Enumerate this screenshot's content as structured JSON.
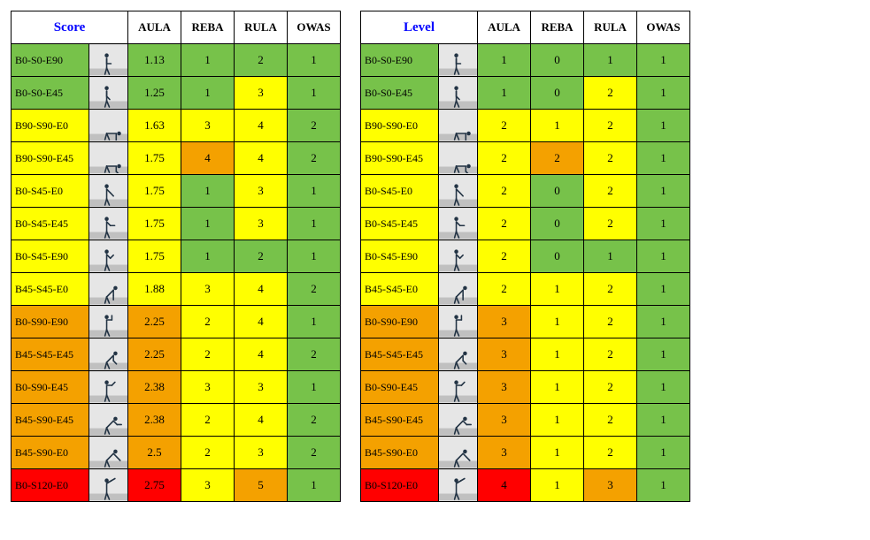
{
  "colors": {
    "green": "#77c24a",
    "yellow": "#ffff00",
    "orange": "#f4a100",
    "red": "#ff0000",
    "header_bg": "#ffffff",
    "header_fg": "#0000ff",
    "border": "#000000",
    "photo_bg": "#d9d9d9",
    "photo_floor": "#c0c0c0",
    "photo_wall": "#e6e6e6",
    "figure": "#223344"
  },
  "tables": [
    {
      "title": "Score",
      "columns": [
        "AULA",
        "REBA",
        "RULA",
        "OWAS"
      ],
      "rows": [
        {
          "label": "B0-S0-E90",
          "label_color": "green",
          "cells": [
            {
              "v": "1.13",
              "c": "green"
            },
            {
              "v": "1",
              "c": "green"
            },
            {
              "v": "2",
              "c": "green"
            },
            {
              "v": "1",
              "c": "green"
            }
          ]
        },
        {
          "label": "B0-S0-E45",
          "label_color": "green",
          "cells": [
            {
              "v": "1.25",
              "c": "green"
            },
            {
              "v": "1",
              "c": "green"
            },
            {
              "v": "3",
              "c": "yellow"
            },
            {
              "v": "1",
              "c": "green"
            }
          ]
        },
        {
          "label": "B90-S90-E0",
          "label_color": "yellow",
          "cells": [
            {
              "v": "1.63",
              "c": "yellow"
            },
            {
              "v": "3",
              "c": "yellow"
            },
            {
              "v": "4",
              "c": "yellow"
            },
            {
              "v": "2",
              "c": "green"
            }
          ]
        },
        {
          "label": "B90-S90-E45",
          "label_color": "yellow",
          "cells": [
            {
              "v": "1.75",
              "c": "yellow"
            },
            {
              "v": "4",
              "c": "orange"
            },
            {
              "v": "4",
              "c": "yellow"
            },
            {
              "v": "2",
              "c": "green"
            }
          ]
        },
        {
          "label": "B0-S45-E0",
          "label_color": "yellow",
          "cells": [
            {
              "v": "1.75",
              "c": "yellow"
            },
            {
              "v": "1",
              "c": "green"
            },
            {
              "v": "3",
              "c": "yellow"
            },
            {
              "v": "1",
              "c": "green"
            }
          ]
        },
        {
          "label": "B0-S45-E45",
          "label_color": "yellow",
          "cells": [
            {
              "v": "1.75",
              "c": "yellow"
            },
            {
              "v": "1",
              "c": "green"
            },
            {
              "v": "3",
              "c": "yellow"
            },
            {
              "v": "1",
              "c": "green"
            }
          ]
        },
        {
          "label": "B0-S45-E90",
          "label_color": "yellow",
          "cells": [
            {
              "v": "1.75",
              "c": "yellow"
            },
            {
              "v": "1",
              "c": "green"
            },
            {
              "v": "2",
              "c": "green"
            },
            {
              "v": "1",
              "c": "green"
            }
          ]
        },
        {
          "label": "B45-S45-E0",
          "label_color": "yellow",
          "cells": [
            {
              "v": "1.88",
              "c": "yellow"
            },
            {
              "v": "3",
              "c": "yellow"
            },
            {
              "v": "4",
              "c": "yellow"
            },
            {
              "v": "2",
              "c": "green"
            }
          ]
        },
        {
          "label": "B0-S90-E90",
          "label_color": "orange",
          "cells": [
            {
              "v": "2.25",
              "c": "orange"
            },
            {
              "v": "2",
              "c": "yellow"
            },
            {
              "v": "4",
              "c": "yellow"
            },
            {
              "v": "1",
              "c": "green"
            }
          ]
        },
        {
          "label": "B45-S45-E45",
          "label_color": "orange",
          "cells": [
            {
              "v": "2.25",
              "c": "orange"
            },
            {
              "v": "2",
              "c": "yellow"
            },
            {
              "v": "4",
              "c": "yellow"
            },
            {
              "v": "2",
              "c": "green"
            }
          ]
        },
        {
          "label": "B0-S90-E45",
          "label_color": "orange",
          "cells": [
            {
              "v": "2.38",
              "c": "orange"
            },
            {
              "v": "3",
              "c": "yellow"
            },
            {
              "v": "3",
              "c": "yellow"
            },
            {
              "v": "1",
              "c": "green"
            }
          ]
        },
        {
          "label": "B45-S90-E45",
          "label_color": "orange",
          "cells": [
            {
              "v": "2.38",
              "c": "orange"
            },
            {
              "v": "2",
              "c": "yellow"
            },
            {
              "v": "4",
              "c": "yellow"
            },
            {
              "v": "2",
              "c": "green"
            }
          ]
        },
        {
          "label": "B45-S90-E0",
          "label_color": "orange",
          "cells": [
            {
              "v": "2.5",
              "c": "orange"
            },
            {
              "v": "2",
              "c": "yellow"
            },
            {
              "v": "3",
              "c": "yellow"
            },
            {
              "v": "2",
              "c": "green"
            }
          ]
        },
        {
          "label": "B0-S120-E0",
          "label_color": "red",
          "cells": [
            {
              "v": "2.75",
              "c": "red"
            },
            {
              "v": "3",
              "c": "yellow"
            },
            {
              "v": "5",
              "c": "orange"
            },
            {
              "v": "1",
              "c": "green"
            }
          ]
        }
      ]
    },
    {
      "title": "Level",
      "columns": [
        "AULA",
        "REBA",
        "RULA",
        "OWAS"
      ],
      "rows": [
        {
          "label": "B0-S0-E90",
          "label_color": "green",
          "cells": [
            {
              "v": "1",
              "c": "green"
            },
            {
              "v": "0",
              "c": "green"
            },
            {
              "v": "1",
              "c": "green"
            },
            {
              "v": "1",
              "c": "green"
            }
          ]
        },
        {
          "label": "B0-S0-E45",
          "label_color": "green",
          "cells": [
            {
              "v": "1",
              "c": "green"
            },
            {
              "v": "0",
              "c": "green"
            },
            {
              "v": "2",
              "c": "yellow"
            },
            {
              "v": "1",
              "c": "green"
            }
          ]
        },
        {
          "label": "B90-S90-E0",
          "label_color": "yellow",
          "cells": [
            {
              "v": "2",
              "c": "yellow"
            },
            {
              "v": "1",
              "c": "yellow"
            },
            {
              "v": "2",
              "c": "yellow"
            },
            {
              "v": "1",
              "c": "green"
            }
          ]
        },
        {
          "label": "B90-S90-E45",
          "label_color": "yellow",
          "cells": [
            {
              "v": "2",
              "c": "yellow"
            },
            {
              "v": "2",
              "c": "orange"
            },
            {
              "v": "2",
              "c": "yellow"
            },
            {
              "v": "1",
              "c": "green"
            }
          ]
        },
        {
          "label": "B0-S45-E0",
          "label_color": "yellow",
          "cells": [
            {
              "v": "2",
              "c": "yellow"
            },
            {
              "v": "0",
              "c": "green"
            },
            {
              "v": "2",
              "c": "yellow"
            },
            {
              "v": "1",
              "c": "green"
            }
          ]
        },
        {
          "label": "B0-S45-E45",
          "label_color": "yellow",
          "cells": [
            {
              "v": "2",
              "c": "yellow"
            },
            {
              "v": "0",
              "c": "green"
            },
            {
              "v": "2",
              "c": "yellow"
            },
            {
              "v": "1",
              "c": "green"
            }
          ]
        },
        {
          "label": "B0-S45-E90",
          "label_color": "yellow",
          "cells": [
            {
              "v": "2",
              "c": "yellow"
            },
            {
              "v": "0",
              "c": "green"
            },
            {
              "v": "1",
              "c": "green"
            },
            {
              "v": "1",
              "c": "green"
            }
          ]
        },
        {
          "label": "B45-S45-E0",
          "label_color": "yellow",
          "cells": [
            {
              "v": "2",
              "c": "yellow"
            },
            {
              "v": "1",
              "c": "yellow"
            },
            {
              "v": "2",
              "c": "yellow"
            },
            {
              "v": "1",
              "c": "green"
            }
          ]
        },
        {
          "label": "B0-S90-E90",
          "label_color": "orange",
          "cells": [
            {
              "v": "3",
              "c": "orange"
            },
            {
              "v": "1",
              "c": "yellow"
            },
            {
              "v": "2",
              "c": "yellow"
            },
            {
              "v": "1",
              "c": "green"
            }
          ]
        },
        {
          "label": "B45-S45-E45",
          "label_color": "orange",
          "cells": [
            {
              "v": "3",
              "c": "orange"
            },
            {
              "v": "1",
              "c": "yellow"
            },
            {
              "v": "2",
              "c": "yellow"
            },
            {
              "v": "1",
              "c": "green"
            }
          ]
        },
        {
          "label": "B0-S90-E45",
          "label_color": "orange",
          "cells": [
            {
              "v": "3",
              "c": "orange"
            },
            {
              "v": "1",
              "c": "yellow"
            },
            {
              "v": "2",
              "c": "yellow"
            },
            {
              "v": "1",
              "c": "green"
            }
          ]
        },
        {
          "label": "B45-S90-E45",
          "label_color": "orange",
          "cells": [
            {
              "v": "3",
              "c": "orange"
            },
            {
              "v": "1",
              "c": "yellow"
            },
            {
              "v": "2",
              "c": "yellow"
            },
            {
              "v": "1",
              "c": "green"
            }
          ]
        },
        {
          "label": "B45-S90-E0",
          "label_color": "orange",
          "cells": [
            {
              "v": "3",
              "c": "orange"
            },
            {
              "v": "1",
              "c": "yellow"
            },
            {
              "v": "2",
              "c": "yellow"
            },
            {
              "v": "1",
              "c": "green"
            }
          ]
        },
        {
          "label": "B0-S120-E0",
          "label_color": "red",
          "cells": [
            {
              "v": "4",
              "c": "red"
            },
            {
              "v": "1",
              "c": "yellow"
            },
            {
              "v": "3",
              "c": "orange"
            },
            {
              "v": "1",
              "c": "green"
            }
          ]
        }
      ]
    }
  ]
}
